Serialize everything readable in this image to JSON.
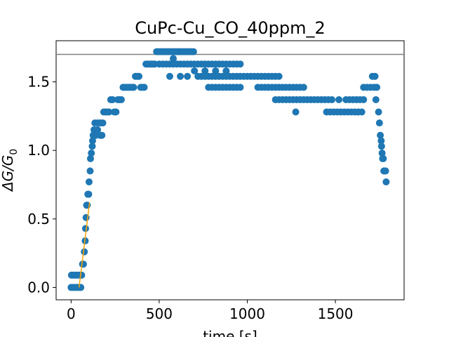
{
  "chart_data": {
    "type": "scatter",
    "title": "CuPc-Cu_CO_40ppm_2",
    "xlabel": "time [s]",
    "ylabel_main": "ΔG/G",
    "ylabel_sub": "0",
    "xlim": [
      -85,
      1890
    ],
    "ylim": [
      -0.09,
      1.8
    ],
    "xticks": [
      0,
      500,
      1000,
      1500
    ],
    "xtick_labels": [
      "0",
      "500",
      "1000",
      "1500"
    ],
    "yticks": [
      0.0,
      0.5,
      1.0,
      1.5
    ],
    "ytick_labels": [
      "0.0",
      "0.5",
      "1.0",
      "1.5"
    ],
    "grid": false,
    "reference_line": {
      "y": 1.7,
      "color": "#808080"
    },
    "fit_line": {
      "x": [
        45,
        105
      ],
      "y": [
        0.0,
        0.62
      ],
      "color": "#ffa500"
    },
    "marker_color": "#1f77b4",
    "series": [
      {
        "points": [
          [
            0,
            0.0
          ],
          [
            10,
            0.0
          ],
          [
            20,
            0.0
          ],
          [
            30,
            0.0
          ],
          [
            40,
            0.0
          ],
          [
            50,
            0.0
          ],
          [
            55,
            0.0
          ],
          [
            2,
            0.09
          ],
          [
            10,
            0.09
          ],
          [
            20,
            0.09
          ],
          [
            30,
            0.09
          ],
          [
            40,
            0.09
          ],
          [
            50,
            0.09
          ],
          [
            55,
            0.09
          ],
          [
            60,
            0.09
          ],
          [
            65,
            0.17
          ],
          [
            70,
            0.17
          ],
          [
            75,
            0.26
          ],
          [
            80,
            0.34
          ],
          [
            82,
            0.43
          ],
          [
            85,
            0.51
          ],
          [
            88,
            0.6
          ],
          [
            92,
            0.6
          ],
          [
            95,
            0.68
          ],
          [
            100,
            0.68
          ],
          [
            102,
            0.77
          ],
          [
            108,
            0.85
          ],
          [
            110,
            0.94
          ],
          [
            115,
            0.98
          ],
          [
            120,
            1.03
          ],
          [
            122,
            1.07
          ],
          [
            125,
            1.11
          ],
          [
            130,
            1.15
          ],
          [
            135,
            1.2
          ],
          [
            140,
            1.11
          ],
          [
            150,
            1.2
          ],
          [
            160,
            1.2
          ],
          [
            170,
            1.2
          ],
          [
            180,
            1.2
          ],
          [
            150,
            1.15
          ],
          [
            165,
            1.11
          ],
          [
            175,
            1.11
          ],
          [
            185,
            1.28
          ],
          [
            195,
            1.28
          ],
          [
            205,
            1.28
          ],
          [
            215,
            1.28
          ],
          [
            225,
            1.37
          ],
          [
            235,
            1.37
          ],
          [
            245,
            1.28
          ],
          [
            255,
            1.28
          ],
          [
            265,
            1.37
          ],
          [
            275,
            1.37
          ],
          [
            285,
            1.37
          ],
          [
            295,
            1.46
          ],
          [
            305,
            1.46
          ],
          [
            315,
            1.46
          ],
          [
            325,
            1.46
          ],
          [
            335,
            1.46
          ],
          [
            345,
            1.46
          ],
          [
            355,
            1.46
          ],
          [
            365,
            1.54
          ],
          [
            375,
            1.54
          ],
          [
            385,
            1.54
          ],
          [
            395,
            1.46
          ],
          [
            405,
            1.46
          ],
          [
            415,
            1.46
          ],
          [
            425,
            1.63
          ],
          [
            435,
            1.63
          ],
          [
            445,
            1.63
          ],
          [
            455,
            1.63
          ],
          [
            465,
            1.63
          ],
          [
            475,
            1.63
          ],
          [
            485,
            1.72
          ],
          [
            495,
            1.72
          ],
          [
            505,
            1.72
          ],
          [
            515,
            1.72
          ],
          [
            525,
            1.72
          ],
          [
            535,
            1.72
          ],
          [
            545,
            1.72
          ],
          [
            555,
            1.72
          ],
          [
            565,
            1.72
          ],
          [
            575,
            1.72
          ],
          [
            585,
            1.72
          ],
          [
            595,
            1.72
          ],
          [
            605,
            1.72
          ],
          [
            615,
            1.72
          ],
          [
            625,
            1.72
          ],
          [
            635,
            1.72
          ],
          [
            645,
            1.72
          ],
          [
            655,
            1.72
          ],
          [
            665,
            1.72
          ],
          [
            675,
            1.72
          ],
          [
            685,
            1.72
          ],
          [
            695,
            1.72
          ],
          [
            500,
            1.63
          ],
          [
            520,
            1.63
          ],
          [
            540,
            1.63
          ],
          [
            560,
            1.63
          ],
          [
            580,
            1.63
          ],
          [
            600,
            1.63
          ],
          [
            620,
            1.63
          ],
          [
            640,
            1.63
          ],
          [
            660,
            1.63
          ],
          [
            680,
            1.63
          ],
          [
            700,
            1.63
          ],
          [
            720,
            1.63
          ],
          [
            740,
            1.63
          ],
          [
            760,
            1.63
          ],
          [
            780,
            1.63
          ],
          [
            800,
            1.63
          ],
          [
            820,
            1.63
          ],
          [
            840,
            1.63
          ],
          [
            860,
            1.63
          ],
          [
            880,
            1.63
          ],
          [
            900,
            1.63
          ],
          [
            920,
            1.63
          ],
          [
            940,
            1.63
          ],
          [
            960,
            1.63
          ],
          [
            560,
            1.54
          ],
          [
            620,
            1.54
          ],
          [
            660,
            1.54
          ],
          [
            580,
            1.67
          ],
          [
            700,
            1.58
          ],
          [
            760,
            1.58
          ],
          [
            820,
            1.58
          ],
          [
            880,
            1.58
          ],
          [
            720,
            1.54
          ],
          [
            740,
            1.54
          ],
          [
            760,
            1.54
          ],
          [
            780,
            1.54
          ],
          [
            800,
            1.54
          ],
          [
            820,
            1.54
          ],
          [
            840,
            1.54
          ],
          [
            860,
            1.54
          ],
          [
            880,
            1.54
          ],
          [
            900,
            1.54
          ],
          [
            920,
            1.54
          ],
          [
            940,
            1.54
          ],
          [
            960,
            1.54
          ],
          [
            980,
            1.54
          ],
          [
            1000,
            1.54
          ],
          [
            1020,
            1.54
          ],
          [
            1040,
            1.54
          ],
          [
            1060,
            1.54
          ],
          [
            1080,
            1.54
          ],
          [
            1100,
            1.54
          ],
          [
            1120,
            1.54
          ],
          [
            1140,
            1.54
          ],
          [
            1160,
            1.54
          ],
          [
            1180,
            1.54
          ],
          [
            780,
            1.46
          ],
          [
            800,
            1.46
          ],
          [
            820,
            1.46
          ],
          [
            840,
            1.46
          ],
          [
            860,
            1.46
          ],
          [
            880,
            1.46
          ],
          [
            900,
            1.46
          ],
          [
            920,
            1.46
          ],
          [
            940,
            1.46
          ],
          [
            960,
            1.46
          ],
          [
            1060,
            1.46
          ],
          [
            1080,
            1.46
          ],
          [
            1100,
            1.46
          ],
          [
            1120,
            1.46
          ],
          [
            1140,
            1.46
          ],
          [
            1160,
            1.46
          ],
          [
            1180,
            1.46
          ],
          [
            1200,
            1.46
          ],
          [
            1220,
            1.46
          ],
          [
            1240,
            1.46
          ],
          [
            1260,
            1.46
          ],
          [
            1280,
            1.46
          ],
          [
            1300,
            1.46
          ],
          [
            1160,
            1.37
          ],
          [
            1180,
            1.37
          ],
          [
            1200,
            1.37
          ],
          [
            1220,
            1.37
          ],
          [
            1240,
            1.37
          ],
          [
            1260,
            1.37
          ],
          [
            1280,
            1.37
          ],
          [
            1300,
            1.37
          ],
          [
            1320,
            1.37
          ],
          [
            1340,
            1.37
          ],
          [
            1360,
            1.37
          ],
          [
            1380,
            1.37
          ],
          [
            1400,
            1.37
          ],
          [
            1420,
            1.37
          ],
          [
            1440,
            1.37
          ],
          [
            1460,
            1.37
          ],
          [
            1480,
            1.37
          ],
          [
            1275,
            1.28
          ],
          [
            1450,
            1.28
          ],
          [
            1470,
            1.28
          ],
          [
            1490,
            1.28
          ],
          [
            1510,
            1.28
          ],
          [
            1530,
            1.28
          ],
          [
            1550,
            1.28
          ],
          [
            1570,
            1.28
          ],
          [
            1590,
            1.28
          ],
          [
            1610,
            1.28
          ],
          [
            1630,
            1.28
          ],
          [
            1650,
            1.28
          ],
          [
            1320,
            1.46
          ],
          [
            1520,
            1.37
          ],
          [
            1560,
            1.37
          ],
          [
            1580,
            1.37
          ],
          [
            1600,
            1.37
          ],
          [
            1620,
            1.37
          ],
          [
            1640,
            1.37
          ],
          [
            1660,
            1.37
          ],
          [
            1660,
            1.46
          ],
          [
            1680,
            1.46
          ],
          [
            1700,
            1.46
          ],
          [
            1720,
            1.46
          ],
          [
            1735,
            1.46
          ],
          [
            1710,
            1.54
          ],
          [
            1725,
            1.54
          ],
          [
            1730,
            1.37
          ],
          [
            1745,
            1.28
          ],
          [
            1750,
            1.2
          ],
          [
            1755,
            1.11
          ],
          [
            1760,
            1.07
          ],
          [
            1762,
            1.03
          ],
          [
            1765,
            0.98
          ],
          [
            1768,
            0.94
          ],
          [
            1772,
            0.94
          ],
          [
            1775,
            0.85
          ],
          [
            1780,
            0.85
          ],
          [
            1785,
            0.85
          ],
          [
            1788,
            0.77
          ]
        ]
      }
    ]
  }
}
